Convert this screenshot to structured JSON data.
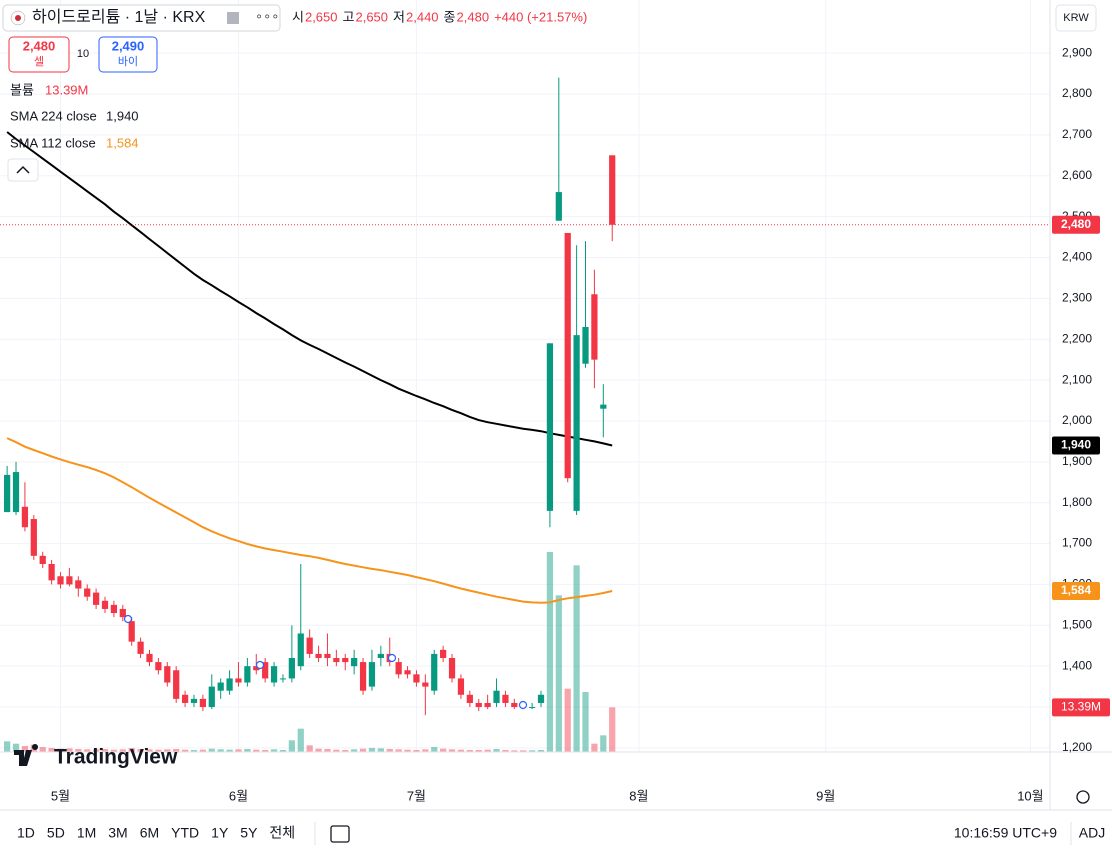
{
  "chart_data": {
    "type": "candlestick",
    "title": "하이드로리튬 · 1날 · KRX",
    "header": [
      {
        "label": "시",
        "value": "2,650"
      },
      {
        "label": "고",
        "value": "2,650"
      },
      {
        "label": "저",
        "value": "2,440"
      },
      {
        "label": "종",
        "value": "2,480"
      }
    ],
    "change": "+440 (+21.57%)",
    "sell": {
      "price": "2,480",
      "label": "셀"
    },
    "spread": "10",
    "buy": {
      "price": "2,490",
      "label": "바이"
    },
    "currency": "KRW",
    "up_color": "#089981",
    "down_color": "#f23645",
    "candles": {
      "open": [
        1777,
        1777,
        1790,
        1760,
        1670,
        1650,
        1620,
        1620,
        1610,
        1590,
        1580,
        1560,
        1550,
        1540,
        1510,
        1460,
        1430,
        1410,
        1400,
        1390,
        1330,
        1310,
        1320,
        1300,
        1340,
        1340,
        1370,
        1360,
        1400,
        1410,
        1360,
        1370,
        1370,
        1400,
        1470,
        1430,
        1430,
        1420,
        1420,
        1400,
        1410,
        1350,
        1420,
        1430,
        1410,
        1390,
        1380,
        1360,
        1340,
        1440,
        1420,
        1370,
        1330,
        1310,
        1310,
        1310,
        1330,
        1310,
        1305,
        1300,
        1310,
        1780,
        2490,
        2460,
        1780,
        2140,
        2310,
        2030,
        2650
      ],
      "high": [
        1890,
        1900,
        1850,
        1770,
        1680,
        1660,
        1630,
        1640,
        1620,
        1600,
        1590,
        1570,
        1560,
        1550,
        1520,
        1470,
        1440,
        1420,
        1410,
        1400,
        1340,
        1330,
        1330,
        1380,
        1370,
        1390,
        1410,
        1420,
        1430,
        1420,
        1410,
        1380,
        1500,
        1650,
        1490,
        1450,
        1480,
        1440,
        1430,
        1440,
        1420,
        1440,
        1450,
        1470,
        1420,
        1400,
        1390,
        1380,
        1440,
        1450,
        1430,
        1380,
        1340,
        1320,
        1330,
        1370,
        1340,
        1320,
        1310,
        1310,
        1340,
        2190,
        2840,
        2460,
        2430,
        2440,
        2370,
        2090,
        2650
      ],
      "low": [
        1777,
        1770,
        1730,
        1660,
        1640,
        1600,
        1590,
        1595,
        1570,
        1560,
        1540,
        1530,
        1520,
        1510,
        1450,
        1420,
        1400,
        1380,
        1350,
        1310,
        1300,
        1300,
        1290,
        1295,
        1320,
        1330,
        1350,
        1350,
        1380,
        1360,
        1350,
        1360,
        1360,
        1390,
        1420,
        1410,
        1400,
        1400,
        1390,
        1380,
        1330,
        1340,
        1400,
        1400,
        1370,
        1370,
        1350,
        1280,
        1330,
        1410,
        1360,
        1320,
        1300,
        1290,
        1295,
        1300,
        1300,
        1295,
        1295,
        1295,
        1300,
        1740,
        2490,
        1850,
        1770,
        2130,
        2080,
        1960,
        2440
      ],
      "close": [
        1868,
        1875,
        1740,
        1670,
        1650,
        1610,
        1600,
        1600,
        1590,
        1570,
        1550,
        1540,
        1530,
        1520,
        1460,
        1430,
        1410,
        1390,
        1360,
        1320,
        1310,
        1320,
        1300,
        1350,
        1360,
        1370,
        1360,
        1400,
        1390,
        1370,
        1400,
        1370,
        1420,
        1480,
        1430,
        1420,
        1420,
        1410,
        1410,
        1420,
        1340,
        1410,
        1430,
        1410,
        1380,
        1380,
        1360,
        1350,
        1430,
        1420,
        1370,
        1330,
        1310,
        1300,
        1300,
        1340,
        1310,
        1300,
        1300,
        1300,
        1330,
        2190,
        2560,
        1860,
        2210,
        2230,
        2150,
        2040,
        2480
      ]
    },
    "last_price_label": "2,480",
    "volume": {
      "name": "볼륨",
      "values": [
        3200000,
        2500000,
        1800000,
        2200000,
        1500000,
        1200000,
        1000000,
        1100000,
        900000,
        800000,
        800000,
        900000,
        700000,
        800000,
        1200000,
        900000,
        800000,
        700000,
        800000,
        900000,
        700000,
        600000,
        700000,
        1000000,
        800000,
        700000,
        800000,
        900000,
        700000,
        600000,
        800000,
        600000,
        3500000,
        7000000,
        2000000,
        1000000,
        900000,
        700000,
        600000,
        800000,
        1000000,
        1200000,
        1100000,
        900000,
        800000,
        700000,
        600000,
        800000,
        1500000,
        1000000,
        800000,
        700000,
        600000,
        600000,
        700000,
        900000,
        600000,
        500000,
        500000,
        500000,
        600000,
        60000000,
        47000000,
        19000000,
        56000000,
        18000000,
        2500000,
        5000000,
        13390000
      ],
      "last_label": "13.39M"
    },
    "sma": [
      {
        "name": "SMA 224 close",
        "color": "#000000",
        "last_label": "1,940",
        "values": [
          2707,
          2690,
          2674,
          2658,
          2642,
          2626,
          2610,
          2594,
          2578,
          2562,
          2546,
          2530,
          2512,
          2496,
          2479,
          2462,
          2445,
          2428,
          2411,
          2394,
          2377,
          2360,
          2345,
          2332,
          2318,
          2305,
          2291,
          2278,
          2264,
          2251,
          2237,
          2224,
          2210,
          2197,
          2186,
          2176,
          2165,
          2154,
          2143,
          2133,
          2122,
          2111,
          2100,
          2090,
          2079,
          2070,
          2061,
          2053,
          2044,
          2036,
          2027,
          2019,
          2010,
          2002,
          1997,
          1993,
          1989,
          1985,
          1981,
          1978,
          1975,
          1970,
          1966,
          1962,
          1958,
          1954,
          1950,
          1945,
          1940
        ]
      },
      {
        "name": "SMA 112 close",
        "color": "#f7931a",
        "last_label": "1,584",
        "values": [
          1958,
          1948,
          1937,
          1929,
          1921,
          1913,
          1906,
          1899,
          1893,
          1887,
          1880,
          1872,
          1862,
          1850,
          1838,
          1825,
          1812,
          1800,
          1788,
          1776,
          1764,
          1752,
          1740,
          1730,
          1721,
          1713,
          1706,
          1699,
          1693,
          1688,
          1684,
          1680,
          1676,
          1672,
          1669,
          1665,
          1660,
          1655,
          1650,
          1646,
          1642,
          1638,
          1635,
          1631,
          1627,
          1623,
          1618,
          1613,
          1608,
          1602,
          1596,
          1590,
          1585,
          1580,
          1575,
          1570,
          1566,
          1562,
          1558,
          1556,
          1555,
          1556,
          1562,
          1566,
          1569,
          1572,
          1575,
          1579,
          1584
        ]
      }
    ],
    "xlim": [
      -0.8,
      117.2
    ],
    "xticks": [
      {
        "value": 6,
        "label": "5월"
      },
      {
        "value": 26,
        "label": "6월"
      },
      {
        "value": 46,
        "label": "7월"
      },
      {
        "value": 71,
        "label": "8월"
      },
      {
        "value": 92,
        "label": "9월"
      },
      {
        "value": 115,
        "label": "10월"
      }
    ],
    "ylim": [
      1190,
      3030
    ],
    "yticks": [
      {
        "value": 1200,
        "label": "1,200"
      },
      {
        "value": 1300,
        "label": "1,300"
      },
      {
        "value": 1400,
        "label": "1,400"
      },
      {
        "value": 1500,
        "label": "1,500"
      },
      {
        "value": 1600,
        "label": "1,600"
      },
      {
        "value": 1700,
        "label": "1,700"
      },
      {
        "value": 1800,
        "label": "1,800"
      },
      {
        "value": 1900,
        "label": "1,900"
      },
      {
        "value": 2000,
        "label": "2,000"
      },
      {
        "value": 2100,
        "label": "2,100"
      },
      {
        "value": 2200,
        "label": "2,200"
      },
      {
        "value": 2300,
        "label": "2,300"
      },
      {
        "value": 2400,
        "label": "2,400"
      },
      {
        "value": 2500,
        "label": "2,500"
      },
      {
        "value": 2600,
        "label": "2,600"
      },
      {
        "value": 2700,
        "label": "2,700"
      },
      {
        "value": 2800,
        "label": "2,800"
      },
      {
        "value": 2900,
        "label": "2,900"
      }
    ],
    "grid": true,
    "logo": "TradingView",
    "ranges": [
      "1D",
      "5D",
      "1M",
      "3M",
      "6M",
      "YTD",
      "1Y",
      "5Y",
      "전체"
    ],
    "clock": "10:16:59 UTC+9",
    "adjust": "ADJ"
  }
}
